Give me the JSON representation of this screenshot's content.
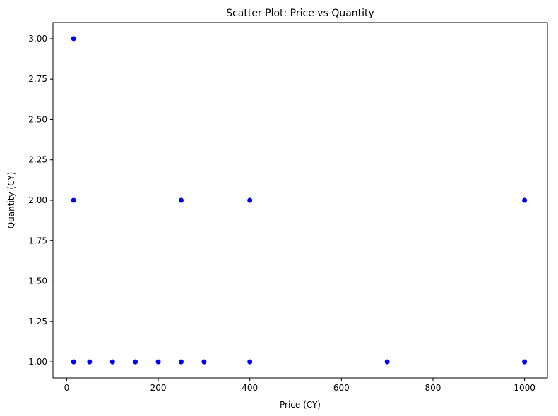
{
  "chart_data": {
    "type": "scatter",
    "title": "Scatter Plot: Price vs Quantity",
    "xlabel": "Price (CY)",
    "ylabel": "Quantity (CY)",
    "xlim": [
      -30,
      1050
    ],
    "ylim": [
      0.9,
      3.1
    ],
    "xticks": [
      0,
      200,
      400,
      600,
      800,
      1000
    ],
    "xtick_labels": [
      "0",
      "200",
      "400",
      "600",
      "800",
      "1000"
    ],
    "yticks": [
      1.0,
      1.25,
      1.5,
      1.75,
      2.0,
      2.25,
      2.5,
      2.75,
      3.0
    ],
    "ytick_labels": [
      "1.00",
      "1.25",
      "1.50",
      "1.75",
      "2.00",
      "2.25",
      "2.50",
      "2.75",
      "3.00"
    ],
    "grid": false,
    "point_color": "#0000ff",
    "points": [
      {
        "x": 15,
        "y": 3
      },
      {
        "x": 15,
        "y": 2
      },
      {
        "x": 15,
        "y": 1
      },
      {
        "x": 50,
        "y": 1
      },
      {
        "x": 100,
        "y": 1
      },
      {
        "x": 150,
        "y": 1
      },
      {
        "x": 200,
        "y": 1
      },
      {
        "x": 250,
        "y": 2
      },
      {
        "x": 250,
        "y": 1
      },
      {
        "x": 300,
        "y": 1
      },
      {
        "x": 400,
        "y": 2
      },
      {
        "x": 400,
        "y": 1
      },
      {
        "x": 700,
        "y": 1
      },
      {
        "x": 1000,
        "y": 2
      },
      {
        "x": 1000,
        "y": 1
      }
    ]
  }
}
